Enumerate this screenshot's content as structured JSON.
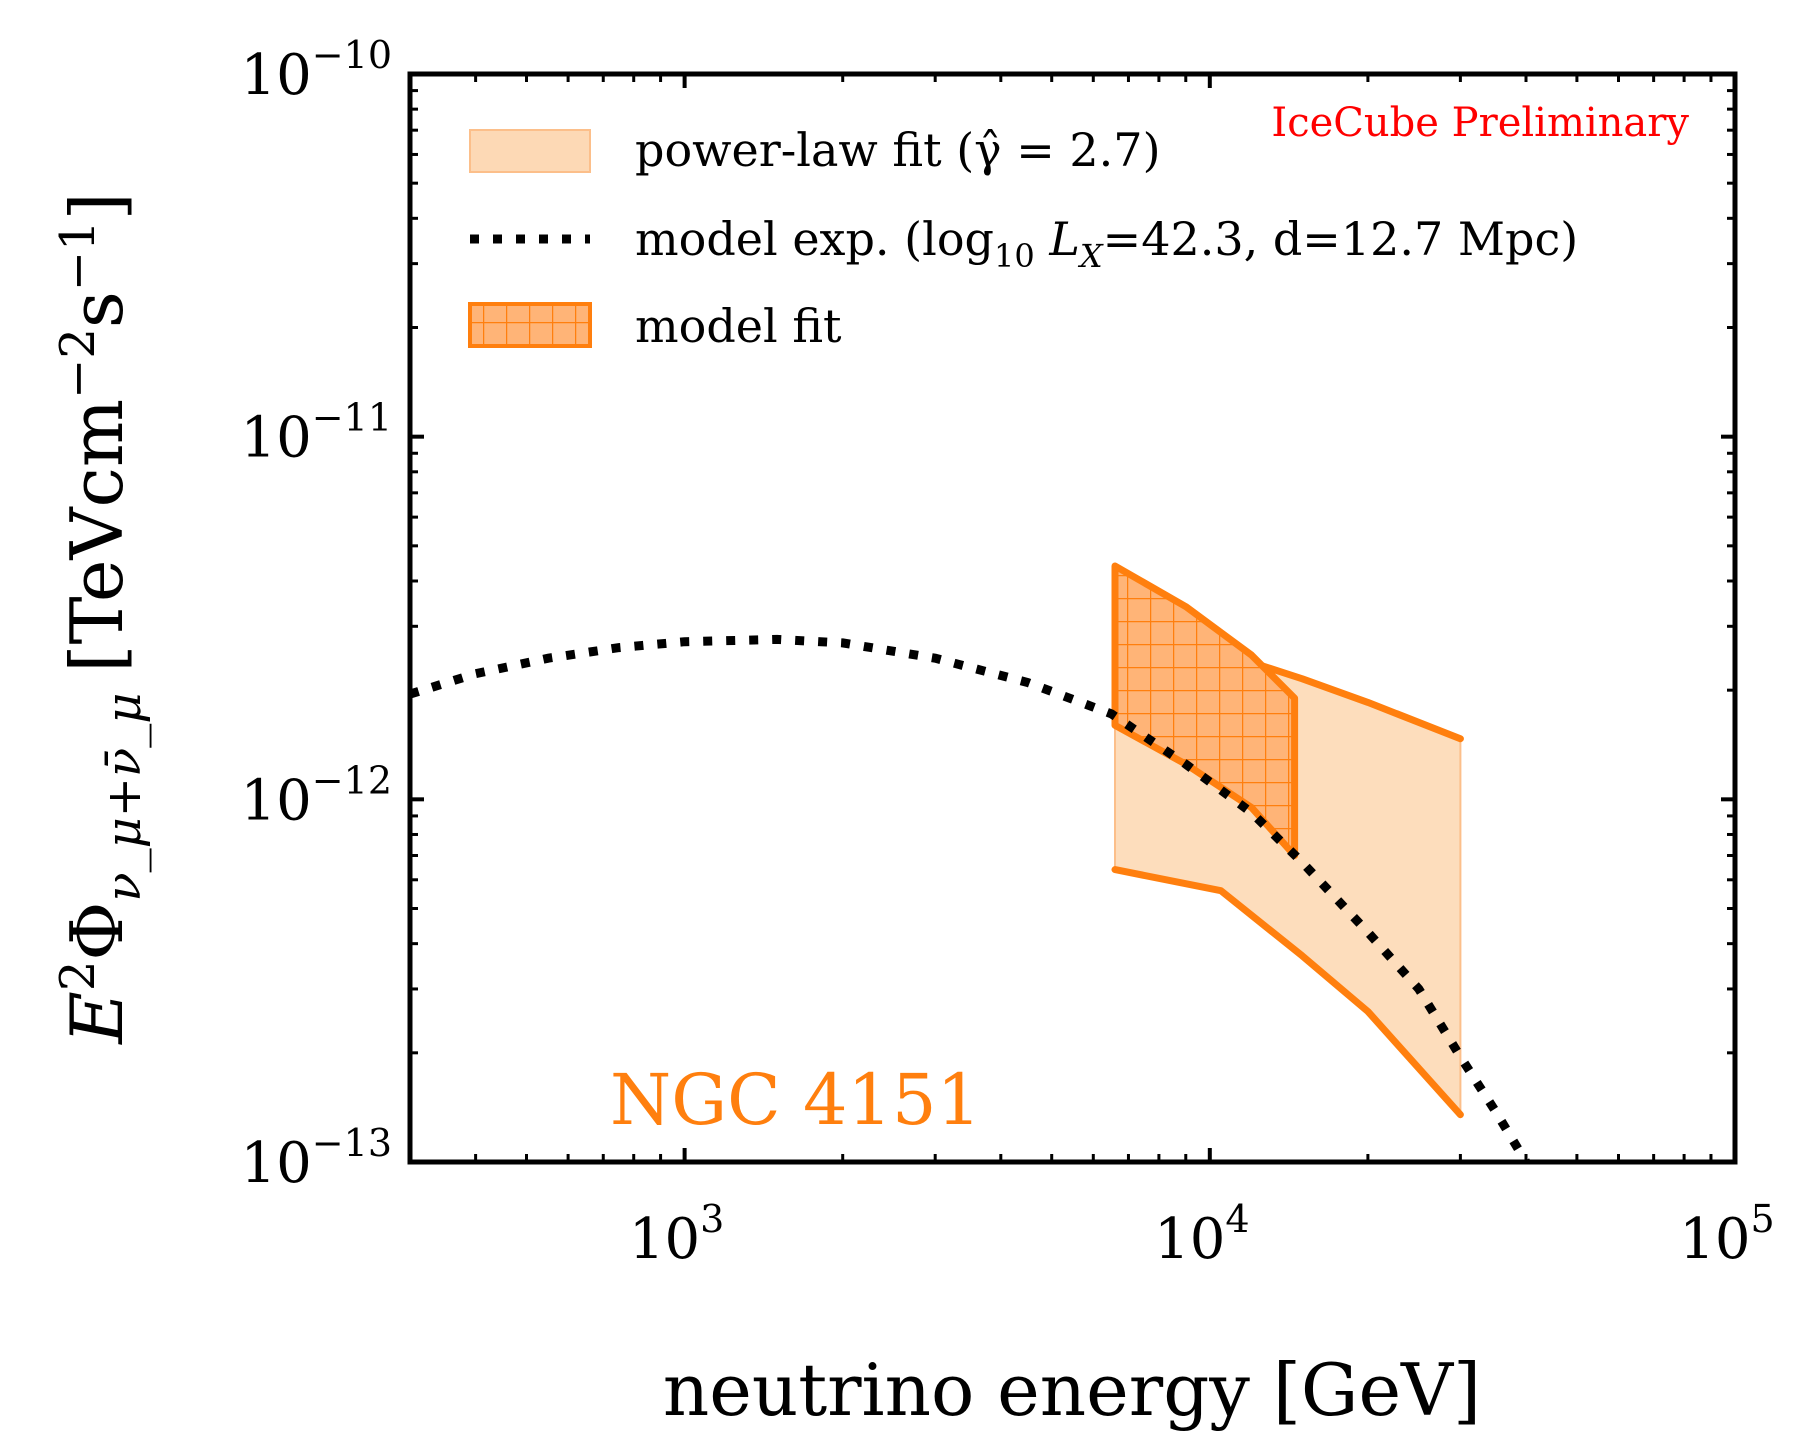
{
  "chart_data": {
    "type": "line",
    "xscale": "log",
    "yscale": "log",
    "xlim": [
      300,
      100000
    ],
    "ylim": [
      1e-13,
      1e-10
    ],
    "xlabel": "neutrino energy [GeV]",
    "ylabel_parts": {
      "base": "E",
      "sup": "2",
      "phi": "Φ",
      "sub": "ν_μ+ν̄_μ",
      "units_prefix": "[TeVcm",
      "units_exp1": "−2",
      "units_mid": "s",
      "units_exp2": "−1",
      "units_suffix": "]"
    },
    "xticks": [
      {
        "value": 1000,
        "base": "10",
        "exp": "3"
      },
      {
        "value": 10000,
        "base": "10",
        "exp": "4"
      },
      {
        "value": 100000,
        "base": "10",
        "exp": "5"
      }
    ],
    "yticks": [
      {
        "value": 1e-13,
        "base": "10",
        "exp": "−13"
      },
      {
        "value": 1e-12,
        "base": "10",
        "exp": "−12"
      },
      {
        "value": 1e-11,
        "base": "10",
        "exp": "−11"
      },
      {
        "value": 1e-10,
        "base": "10",
        "exp": "−10"
      }
    ],
    "annotations": {
      "source": "NGC 4151",
      "source_color": "#ff7f0e",
      "watermark": "IceCube Preliminary",
      "watermark_color": "#ff0000"
    },
    "legend": {
      "placement": "top-left",
      "entries": [
        {
          "key": "powerlaw",
          "label": "power-law fit (γ̂ = 2.7)"
        },
        {
          "key": "model_exp",
          "label_prefix": "model exp. (log",
          "label_sub": "10",
          "label_L": " L",
          "label_Lsub": "X",
          "label_suffix": "=42.3, d=12.7 Mpc)"
        },
        {
          "key": "model_fit",
          "label": "model fit"
        }
      ]
    },
    "series": [
      {
        "name": "model exp.",
        "style": "dotted",
        "color": "#000000",
        "points": [
          [
            300,
            1.95e-12
          ],
          [
            400,
            2.22e-12
          ],
          [
            550,
            2.45e-12
          ],
          [
            750,
            2.62e-12
          ],
          [
            1000,
            2.72e-12
          ],
          [
            1500,
            2.76e-12
          ],
          [
            2000,
            2.7e-12
          ],
          [
            3000,
            2.45e-12
          ],
          [
            4500,
            2.1e-12
          ],
          [
            6500,
            1.72e-12
          ],
          [
            9000,
            1.25e-12
          ],
          [
            12000,
            9.2e-13
          ],
          [
            15000,
            6.7e-13
          ],
          [
            20000,
            4.3e-13
          ],
          [
            25000,
            3e-13
          ],
          [
            30000,
            1.95e-13
          ],
          [
            35000,
            1.38e-13
          ],
          [
            40000,
            1e-13
          ]
        ]
      },
      {
        "name": "power-law fit band",
        "style": "fill",
        "color": "#fdd9b5",
        "upper": [
          [
            6600,
            3.65e-12
          ],
          [
            10000,
            2.6e-12
          ],
          [
            15000,
            2.15e-12
          ],
          [
            20000,
            1.85e-12
          ],
          [
            30000,
            1.47e-12
          ]
        ],
        "lower": [
          [
            6600,
            6.4e-13
          ],
          [
            10500,
            5.6e-13
          ],
          [
            15000,
            3.7e-13
          ],
          [
            20000,
            2.6e-13
          ],
          [
            30000,
            1.35e-13
          ]
        ]
      },
      {
        "name": "power-law upper edge",
        "style": "solid",
        "color": "#ff7f0e",
        "points": [
          [
            6600,
            3.65e-12
          ],
          [
            10000,
            2.6e-12
          ],
          [
            15000,
            2.15e-12
          ],
          [
            20000,
            1.85e-12
          ],
          [
            30000,
            1.47e-12
          ]
        ]
      },
      {
        "name": "power-law lower edge",
        "style": "solid",
        "color": "#ff7f0e",
        "points": [
          [
            6600,
            6.4e-13
          ],
          [
            10500,
            5.6e-13
          ],
          [
            15000,
            3.7e-13
          ],
          [
            20000,
            2.6e-13
          ],
          [
            30000,
            1.35e-13
          ]
        ]
      },
      {
        "name": "model fit band",
        "style": "hatched",
        "color": "#ff7f0e",
        "upper": [
          [
            6600,
            4.4e-12
          ],
          [
            9000,
            3.4e-12
          ],
          [
            12000,
            2.5e-12
          ],
          [
            14500,
            1.9e-12
          ]
        ],
        "lower": [
          [
            6600,
            1.6e-12
          ],
          [
            9000,
            1.25e-12
          ],
          [
            12000,
            9.5e-13
          ],
          [
            14500,
            7e-13
          ]
        ]
      }
    ]
  }
}
